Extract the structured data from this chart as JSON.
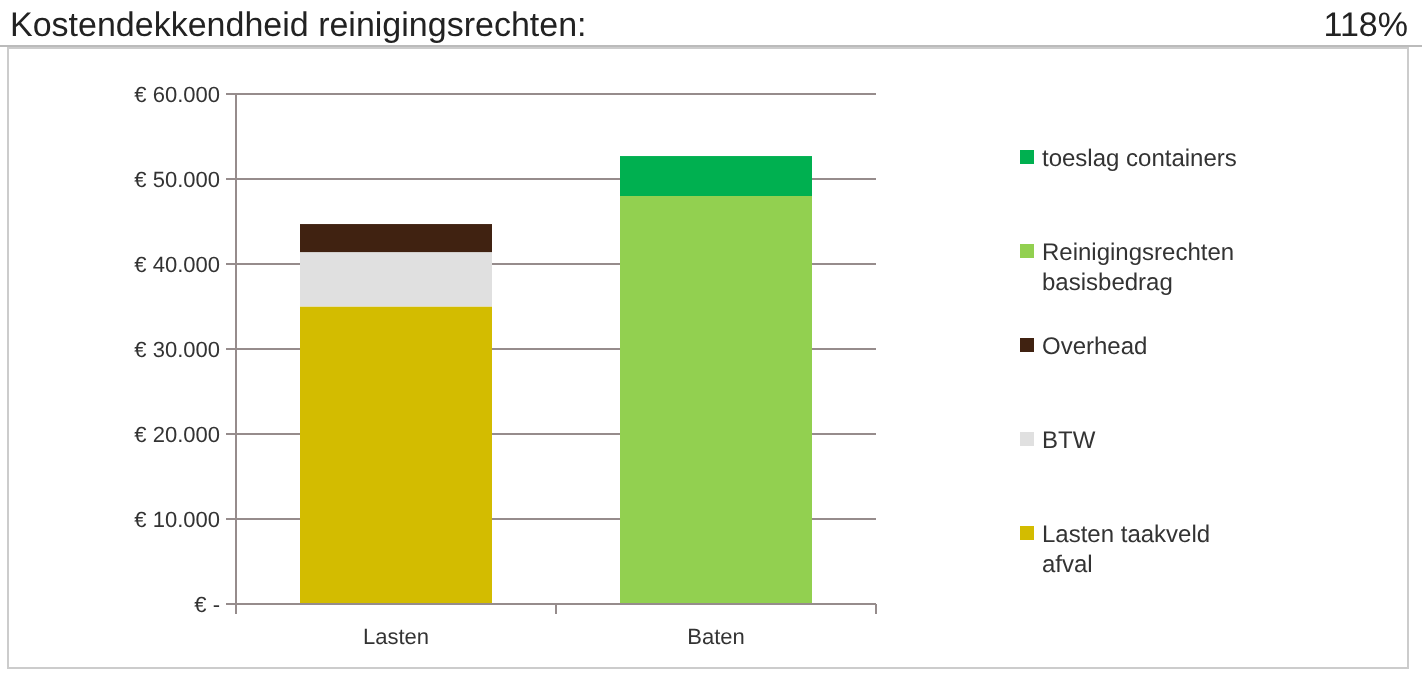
{
  "chart_data": {
    "type": "bar",
    "title": "Kostendekkendheid reinigingsrechten:",
    "annotations": [
      "118%"
    ],
    "categories": [
      "Lasten",
      "Baten"
    ],
    "stacked": true,
    "series": [
      {
        "name": "Lasten taakveld afval",
        "color": "#d3bc00",
        "values": [
          35000,
          null
        ]
      },
      {
        "name": "BTW",
        "color": "#e0e0e0",
        "values": [
          6400,
          null
        ]
      },
      {
        "name": "Overhead",
        "color": "#402211",
        "values": [
          3300,
          null
        ]
      },
      {
        "name": "Reinigingsrechten basisbedrag",
        "color": "#92d050",
        "values": [
          null,
          48000
        ]
      },
      {
        "name": "toeslag containers",
        "color": "#00b050",
        "values": [
          null,
          4700
        ]
      }
    ],
    "ylim": [
      0,
      60000
    ],
    "yticks": [
      {
        "value": 0,
        "label": "€ -"
      },
      {
        "value": 10000,
        "label": "€ 10.000"
      },
      {
        "value": 20000,
        "label": "€ 20.000"
      },
      {
        "value": 30000,
        "label": "€ 30.000"
      },
      {
        "value": 40000,
        "label": "€ 40.000"
      },
      {
        "value": 50000,
        "label": "€ 50.000"
      },
      {
        "value": 60000,
        "label": "€ 60.000"
      }
    ],
    "grid": "y",
    "legend": "right"
  }
}
